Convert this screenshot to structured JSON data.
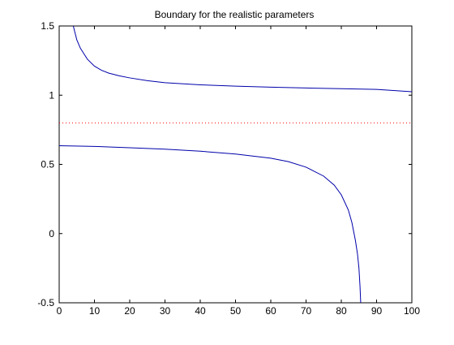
{
  "chart_data": {
    "type": "line",
    "title": "Boundary for the realistic parameters",
    "xlabel": "",
    "ylabel": "",
    "xlim": [
      0,
      100
    ],
    "ylim": [
      -0.5,
      1.5
    ],
    "xticks": [
      0,
      10,
      20,
      30,
      40,
      50,
      60,
      70,
      80,
      90,
      100
    ],
    "yticks": [
      -0.5,
      0,
      0.5,
      1,
      1.5
    ],
    "grid": false,
    "legend": "none",
    "series": [
      {
        "color": "#0000aa",
        "style": "solid",
        "x": [
          4,
          5,
          6,
          7,
          8,
          10,
          12,
          14,
          17,
          20,
          25,
          30,
          40,
          50,
          60,
          70,
          80,
          90,
          100
        ],
        "y": [
          1.5,
          1.4,
          1.34,
          1.3,
          1.26,
          1.21,
          1.18,
          1.16,
          1.14,
          1.125,
          1.105,
          1.09,
          1.075,
          1.065,
          1.058,
          1.052,
          1.047,
          1.042,
          1.025
        ]
      },
      {
        "color": "#0000aa",
        "style": "solid",
        "x": [
          0,
          10,
          20,
          30,
          40,
          50,
          60,
          65,
          70,
          75,
          78,
          80,
          82,
          83,
          84,
          84.6,
          85,
          85.3,
          85.5
        ],
        "y": [
          0.635,
          0.63,
          0.62,
          0.61,
          0.595,
          0.575,
          0.545,
          0.52,
          0.48,
          0.415,
          0.35,
          0.28,
          0.17,
          0.08,
          -0.05,
          -0.15,
          -0.25,
          -0.38,
          -0.5
        ]
      },
      {
        "color": "#ff0000",
        "style": "dotted",
        "x": [
          0,
          100
        ],
        "y": [
          0.8,
          0.8
        ]
      }
    ]
  }
}
